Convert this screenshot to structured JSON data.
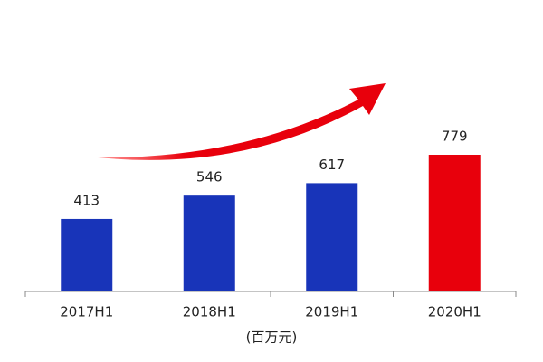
{
  "chart_data": {
    "type": "bar",
    "categories": [
      "2017H1",
      "2018H1",
      "2019H1",
      "2020H1"
    ],
    "values": [
      413,
      546,
      617,
      779
    ],
    "colors": [
      "#1834b9",
      "#1834b9",
      "#1834b9",
      "#e8000c"
    ],
    "x_label": "(百万元)"
  }
}
